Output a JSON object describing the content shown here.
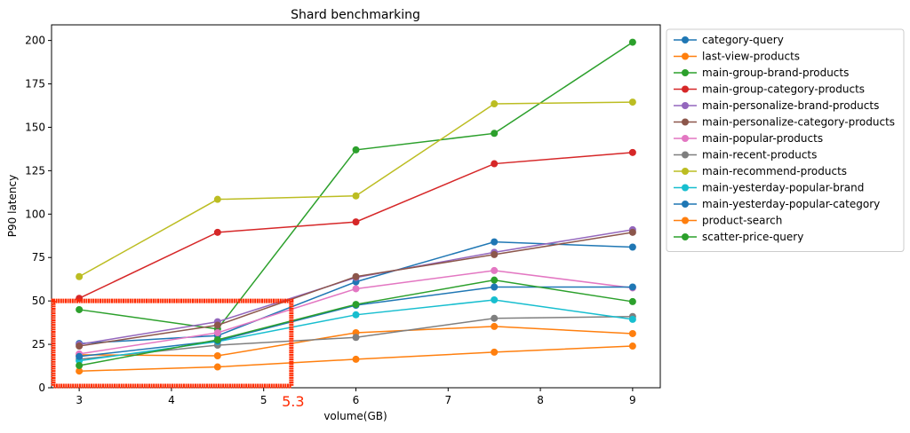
{
  "chart_data": {
    "type": "line",
    "title": "Shard benchmarking",
    "xlabel": "volume(GB)",
    "ylabel": "P90 latency",
    "xlim": [
      2.7,
      9.3
    ],
    "ylim": [
      0,
      209
    ],
    "xticks": [
      3,
      4,
      5,
      6,
      7,
      8,
      9
    ],
    "yticks": [
      0,
      25,
      50,
      75,
      100,
      125,
      150,
      175,
      200
    ],
    "grid": false,
    "legend_placement": "outside-right",
    "x": [
      3,
      4.5,
      6,
      7.5,
      9
    ],
    "series": [
      {
        "name": "category-query",
        "color": "#1f77b4",
        "values": [
          25.5,
          30,
          61,
          84,
          81
        ]
      },
      {
        "name": "last-view-products",
        "color": "#ff7f0e",
        "values": [
          19,
          18.4,
          31.7,
          35.3,
          31.2
        ]
      },
      {
        "name": "main-group-brand-products",
        "color": "#2ca02c",
        "values": [
          45,
          33.8,
          137,
          146.5,
          199
        ]
      },
      {
        "name": "main-group-category-products",
        "color": "#d62728",
        "values": [
          51.5,
          89.5,
          95.5,
          129,
          135.5
        ]
      },
      {
        "name": "main-personalize-brand-products",
        "color": "#9467bd",
        "values": [
          25,
          38,
          63.5,
          78,
          91
        ]
      },
      {
        "name": "main-personalize-category-products",
        "color": "#8c564b",
        "values": [
          24,
          36,
          64,
          76.7,
          89.5
        ]
      },
      {
        "name": "main-popular-products",
        "color": "#e377c2",
        "values": [
          19.5,
          31.7,
          57,
          67.5,
          57.5
        ]
      },
      {
        "name": "main-recent-products",
        "color": "#7f7f7f",
        "values": [
          16.4,
          24.5,
          29,
          40,
          41
        ]
      },
      {
        "name": "main-recommend-products",
        "color": "#bcbd22",
        "values": [
          64,
          108.5,
          110.5,
          163.5,
          164.5
        ]
      },
      {
        "name": "main-yesterday-popular-brand",
        "color": "#17becf",
        "values": [
          15.5,
          26.6,
          42,
          50.6,
          39.4
        ]
      },
      {
        "name": "main-yesterday-popular-category",
        "color": "#1f77b4",
        "values": [
          18,
          27,
          47.5,
          58,
          58
        ]
      },
      {
        "name": "product-search",
        "color": "#ff7f0e",
        "values": [
          9.6,
          12,
          16.4,
          20.5,
          24
        ]
      },
      {
        "name": "scatter-price-query",
        "color": "#2ca02c",
        "values": [
          12.8,
          27.6,
          48,
          62,
          49.6
        ]
      }
    ],
    "annotation": {
      "label": "5.3",
      "color": "#ff2a00",
      "box_x": [
        2.7,
        5.3
      ],
      "box_y": [
        0,
        50
      ]
    }
  }
}
